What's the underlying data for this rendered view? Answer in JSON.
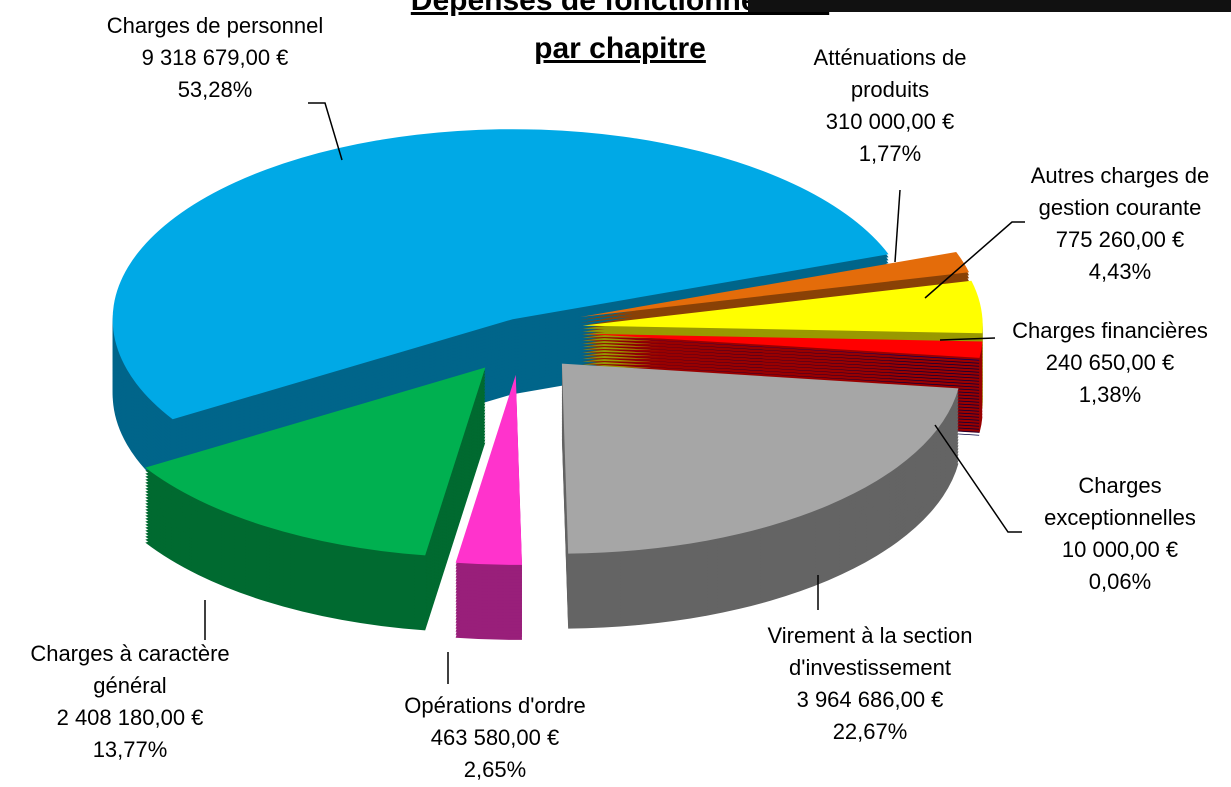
{
  "chart_data": {
    "type": "pie",
    "title": "Dépenses de fonctionnement",
    "subtitle": "par chapitre",
    "categories": [
      "Charges de personnel",
      "Atténuations de produits",
      "Autres charges de gestion courante",
      "Charges financières",
      "Charges exceptionnelles",
      "Virement à la section d'investissement",
      "Opérations d'ordre",
      "Charges à caractère général"
    ],
    "values": [
      53.28,
      1.77,
      4.43,
      1.38,
      0.06,
      22.67,
      2.65,
      13.77
    ],
    "value_labels": [
      "53,28%",
      "1,77%",
      "4,43%",
      "1,38%",
      "0,06%",
      "22,67%",
      "2,65%",
      "13,77%"
    ],
    "amounts": [
      9318679,
      310000,
      775260,
      240650,
      10000,
      3964686,
      463580,
      2408180
    ],
    "amount_labels": [
      "9 318 679,00 €",
      "310 000,00 €",
      "775 260,00 €",
      "240 650,00 €",
      "10 000,00 €",
      "3 964 686,00 €",
      "463 580,00 €",
      "2 408 180,00 €"
    ],
    "colors": [
      "#00a9e6",
      "#e46c0a",
      "#ffff00",
      "#ff0000",
      "#000066",
      "#a6a6a6",
      "#ff33cc",
      "#00b050"
    ]
  }
}
